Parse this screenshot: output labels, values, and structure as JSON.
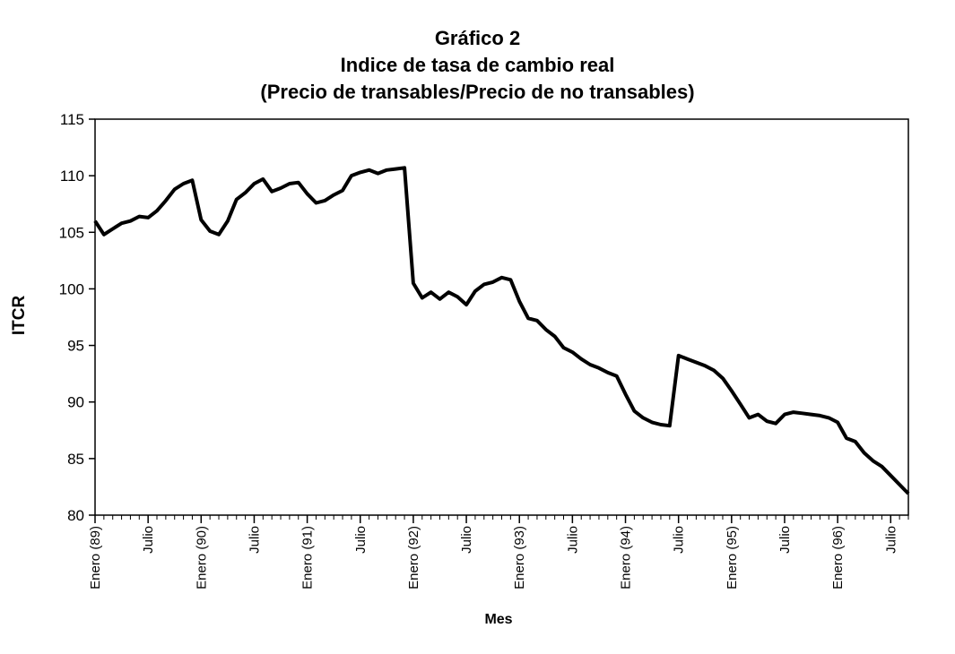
{
  "chart_data": {
    "type": "line",
    "title": "Gráfico 2",
    "subtitle": "Indice de tasa de cambio real",
    "subtitle2": "(Precio de transables/Precio de no transables)",
    "xlabel": "Mes",
    "ylabel": "ITCR",
    "ylim": [
      80,
      115
    ],
    "yticks": [
      80,
      85,
      90,
      95,
      100,
      105,
      110,
      115
    ],
    "grid": false,
    "x_tick_labels": [
      {
        "month_index": 0,
        "label": "Enero (89)"
      },
      {
        "month_index": 6,
        "label": "Julio"
      },
      {
        "month_index": 12,
        "label": "Enero (90)"
      },
      {
        "month_index": 18,
        "label": "Julio"
      },
      {
        "month_index": 24,
        "label": "Enero (91)"
      },
      {
        "month_index": 30,
        "label": "Julio"
      },
      {
        "month_index": 36,
        "label": "Enero (92)"
      },
      {
        "month_index": 42,
        "label": "Julio"
      },
      {
        "month_index": 48,
        "label": "Enero (93)"
      },
      {
        "month_index": 54,
        "label": "Julio"
      },
      {
        "month_index": 60,
        "label": "Enero (94)"
      },
      {
        "month_index": 66,
        "label": "Julio"
      },
      {
        "month_index": 72,
        "label": "Enero (95)"
      },
      {
        "month_index": 78,
        "label": "Julio"
      },
      {
        "month_index": 84,
        "label": "Enero (96)"
      },
      {
        "month_index": 90,
        "label": "Julio"
      }
    ],
    "series": [
      {
        "values": [
          106.0,
          104.8,
          105.3,
          105.8,
          106.0,
          106.4,
          106.3,
          106.9,
          107.8,
          108.8,
          109.3,
          109.6,
          106.1,
          105.1,
          104.8,
          106.0,
          107.9,
          108.5,
          109.3,
          109.7,
          108.6,
          108.9,
          109.3,
          109.4,
          108.4,
          107.6,
          107.8,
          108.3,
          108.7,
          110.0,
          110.3,
          110.5,
          110.2,
          110.5,
          110.6,
          110.7,
          100.5,
          99.2,
          99.7,
          99.1,
          99.7,
          99.3,
          98.6,
          99.8,
          100.4,
          100.6,
          101.0,
          100.8,
          98.9,
          97.4,
          97.2,
          96.4,
          95.8,
          94.8,
          94.4,
          93.8,
          93.3,
          93.0,
          92.6,
          92.3,
          90.7,
          89.2,
          88.6,
          88.2,
          88.0,
          87.9,
          94.1,
          93.8,
          93.5,
          93.2,
          92.8,
          92.1,
          91.0,
          89.8,
          88.6,
          88.9,
          88.3,
          88.1,
          88.9,
          89.1,
          89.0,
          88.9,
          88.8,
          88.6,
          88.2,
          86.8,
          86.5,
          85.5,
          84.8,
          84.3,
          83.5,
          82.7,
          81.9
        ]
      }
    ]
  }
}
